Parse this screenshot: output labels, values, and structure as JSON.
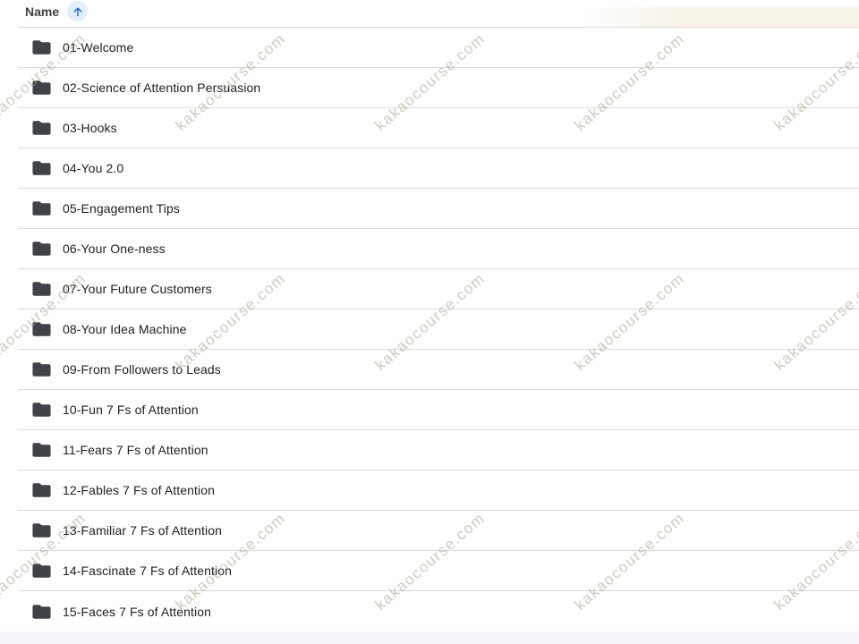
{
  "header": {
    "column_label": "Name",
    "sort_direction": "ascending"
  },
  "folders": [
    {
      "name": "01-Welcome"
    },
    {
      "name": "02-Science of Attention Persuasion"
    },
    {
      "name": "03-Hooks"
    },
    {
      "name": "04-You 2.0"
    },
    {
      "name": "05-Engagement Tips"
    },
    {
      "name": "06-Your One-ness"
    },
    {
      "name": "07-Your Future Customers"
    },
    {
      "name": "08-Your Idea Machine"
    },
    {
      "name": "09-From Followers to Leads"
    },
    {
      "name": "10-Fun 7 Fs of Attention"
    },
    {
      "name": "11-Fears 7 Fs of Attention"
    },
    {
      "name": "12-Fables 7 Fs of Attention"
    },
    {
      "name": "13-Familiar 7 Fs of Attention"
    },
    {
      "name": "14-Fascinate 7 Fs of Attention"
    },
    {
      "name": "15-Faces 7 Fs of Attention"
    }
  ],
  "watermark": {
    "text": "kakaocourse.com"
  },
  "colors": {
    "sort_icon": "#1967d2",
    "sort_badge_bg": "#e3eefb",
    "folder_icon": "#3f4347",
    "header_text": "#3c4043",
    "row_text": "#202124",
    "divider": "#d9dadc",
    "watermark_text": "rgba(167,157,141,0.55)",
    "bottom_strip": "#f6f7fb"
  }
}
